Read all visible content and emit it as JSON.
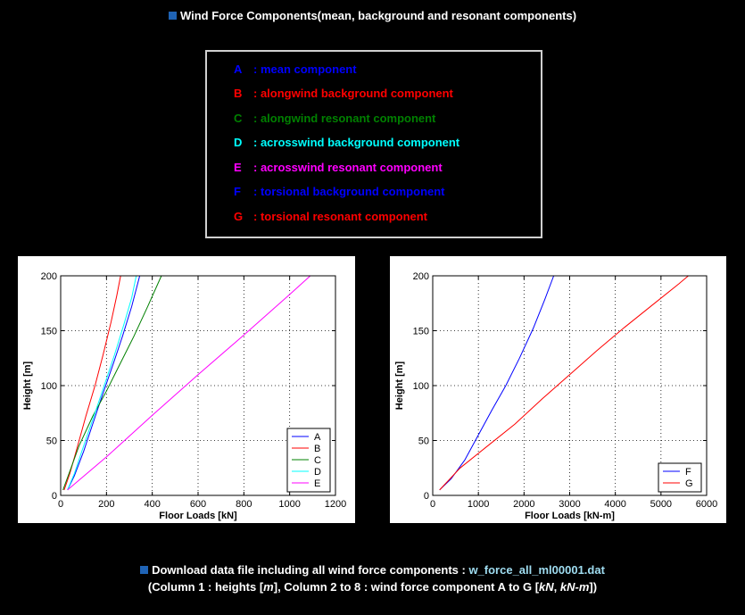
{
  "title": "Wind Force Components(mean, background and resonant components)",
  "legend_box": {
    "items": [
      {
        "key": "A",
        "label": ": mean component",
        "color": "#0000ff"
      },
      {
        "key": "B",
        "label": ": alongwind background component",
        "color": "#ff0000"
      },
      {
        "key": "C",
        "label": ": alongwind resonant component",
        "color": "#008000"
      },
      {
        "key": "D",
        "label": ": acrosswind background component",
        "color": "#00ffff"
      },
      {
        "key": "E",
        "label": ": acrosswind resonant component",
        "color": "#ff00ff"
      },
      {
        "key": "F",
        "label": ": torsional background component",
        "color": "#0000ff"
      },
      {
        "key": "G",
        "label": ": torsional resonant component",
        "color": "#ff0000"
      }
    ]
  },
  "footer": {
    "download_prefix": "Download data file including all wind force components : ",
    "download_link": "w_force_all_ml00001.dat",
    "note_prefix": "(Column 1 : heights [",
    "note_m": "m",
    "note_mid": "], Column 2 to 8 : wind force component A to G [",
    "note_kn": "kN",
    "note_sep": ", ",
    "note_knm": "kN-m",
    "note_suffix": "])"
  },
  "chart_data": [
    {
      "type": "line",
      "xlabel": "Floor Loads [kN]",
      "ylabel": "Height [m]",
      "xlim": [
        0,
        1200
      ],
      "ylim": [
        0,
        200
      ],
      "xticks": [
        0,
        200,
        400,
        600,
        800,
        1000,
        1200
      ],
      "yticks": [
        0,
        50,
        100,
        150,
        200
      ],
      "grid": true,
      "legend_position": "bottom-right",
      "series": [
        {
          "name": "A",
          "color": "#0000ff",
          "x": [
            30,
            60,
            100,
            140,
            180,
            230,
            270,
            310,
            345
          ],
          "y": [
            5,
            18,
            40,
            65,
            90,
            120,
            145,
            172,
            200
          ]
        },
        {
          "name": "B",
          "color": "#ff0000",
          "x": [
            15,
            40,
            70,
            110,
            150,
            185,
            220,
            245,
            262
          ],
          "y": [
            5,
            20,
            42,
            72,
            100,
            128,
            158,
            182,
            200
          ]
        },
        {
          "name": "C",
          "color": "#008000",
          "x": [
            10,
            40,
            80,
            140,
            200,
            260,
            320,
            380,
            440
          ],
          "y": [
            5,
            22,
            45,
            72,
            95,
            120,
            145,
            172,
            200
          ]
        },
        {
          "name": "D",
          "color": "#00ffff",
          "x": [
            30,
            60,
            100,
            145,
            190,
            235,
            275,
            310,
            330
          ],
          "y": [
            5,
            20,
            45,
            72,
            100,
            128,
            155,
            180,
            200
          ]
        },
        {
          "name": "E",
          "color": "#ff00ff",
          "x": [
            30,
            200,
            400,
            600,
            800,
            1000,
            1090
          ],
          "y": [
            5,
            35,
            73,
            110,
            146,
            183,
            200
          ]
        }
      ]
    },
    {
      "type": "line",
      "xlabel": "Floor Loads [kN-m]",
      "ylabel": "Height [m]",
      "xlim": [
        0,
        6000
      ],
      "ylim": [
        0,
        200
      ],
      "xticks": [
        0,
        1000,
        2000,
        3000,
        4000,
        5000,
        6000
      ],
      "yticks": [
        0,
        50,
        100,
        150,
        200
      ],
      "grid": true,
      "legend_position": "bottom-right",
      "series": [
        {
          "name": "F",
          "color": "#0000ff",
          "x": [
            150,
            400,
            700,
            1000,
            1300,
            1600,
            1900,
            2200,
            2450,
            2650
          ],
          "y": [
            5,
            15,
            32,
            55,
            78,
            100,
            125,
            152,
            178,
            200
          ]
        },
        {
          "name": "G",
          "color": "#ff0000",
          "x": [
            150,
            600,
            1200,
            1800,
            2400,
            3000,
            3600,
            4200,
            4800,
            5400,
            5600
          ],
          "y": [
            5,
            25,
            45,
            65,
            88,
            110,
            132,
            153,
            173,
            193,
            200
          ]
        }
      ]
    }
  ]
}
